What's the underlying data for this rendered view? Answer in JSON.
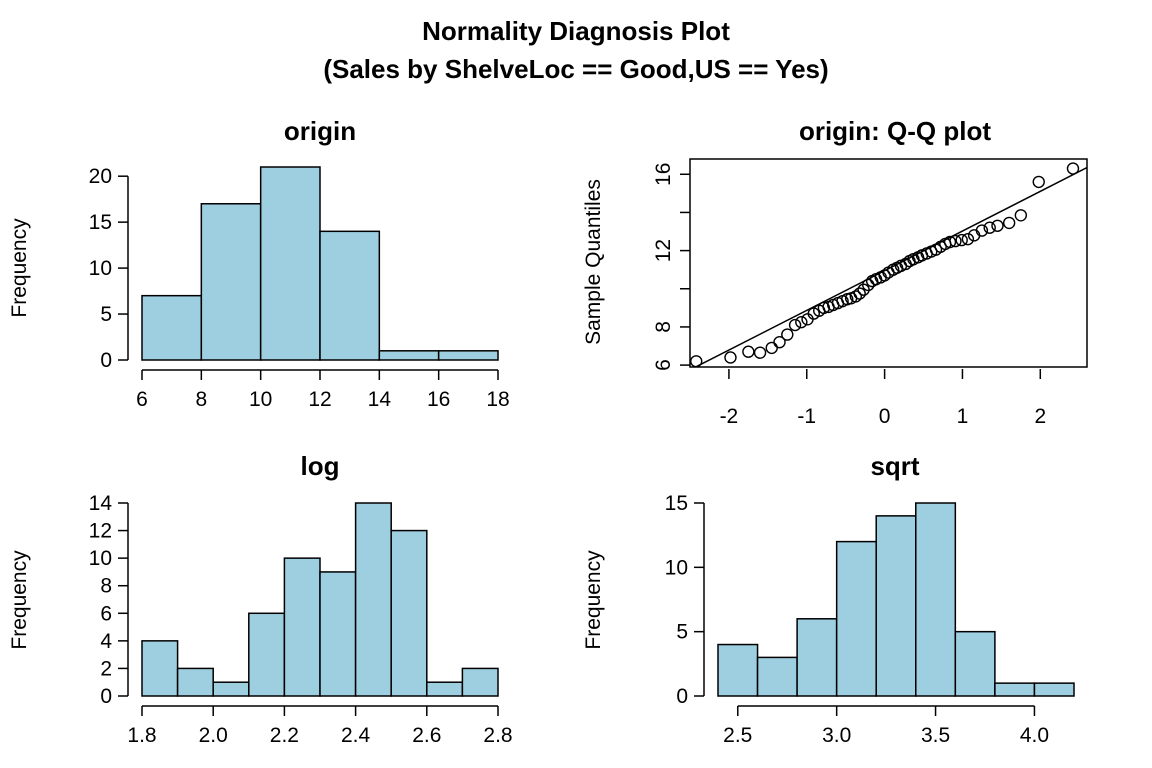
{
  "title": "Normality Diagnosis Plot",
  "subtitle": "(Sales by ShelveLoc == Good,US == Yes)",
  "colors": {
    "bar_fill": "#9ecfe0",
    "stroke": "#000000",
    "background": "#ffffff"
  },
  "chart_data": [
    {
      "type": "bar",
      "title": "origin",
      "xlabel": "",
      "ylabel": "Frequency",
      "bins": [
        [
          6,
          8
        ],
        [
          8,
          10
        ],
        [
          10,
          12
        ],
        [
          12,
          14
        ],
        [
          14,
          16
        ],
        [
          16,
          18
        ]
      ],
      "values": [
        7,
        17,
        21,
        14,
        1,
        1
      ],
      "xlim": [
        6,
        18
      ],
      "ylim": [
        0,
        21
      ],
      "xticks": [
        "6",
        "8",
        "10",
        "12",
        "14",
        "16",
        "18"
      ],
      "yticks": [
        "0",
        "5",
        "10",
        "15",
        "20"
      ]
    },
    {
      "type": "scatter",
      "title": "origin: Q-Q plot",
      "xlabel": "",
      "ylabel": "Sample Quantiles",
      "xlim": [
        -2.5,
        2.6
      ],
      "ylim": [
        5.9,
        16.8
      ],
      "xticks": [
        "-2",
        "-1",
        "0",
        "1",
        "2"
      ],
      "yticks": [
        "6",
        "8",
        "12",
        "16"
      ],
      "points": [
        [
          -2.42,
          6.2
        ],
        [
          -1.98,
          6.4
        ],
        [
          -1.75,
          6.7
        ],
        [
          -1.6,
          6.65
        ],
        [
          -1.45,
          6.9
        ],
        [
          -1.35,
          7.2
        ],
        [
          -1.25,
          7.6
        ],
        [
          -1.15,
          8.1
        ],
        [
          -1.07,
          8.25
        ],
        [
          -0.99,
          8.4
        ],
        [
          -0.91,
          8.7
        ],
        [
          -0.84,
          8.85
        ],
        [
          -0.78,
          9.0
        ],
        [
          -0.72,
          9.05
        ],
        [
          -0.66,
          9.15
        ],
        [
          -0.6,
          9.25
        ],
        [
          -0.54,
          9.35
        ],
        [
          -0.48,
          9.45
        ],
        [
          -0.43,
          9.5
        ],
        [
          -0.37,
          9.6
        ],
        [
          -0.32,
          9.75
        ],
        [
          -0.27,
          9.95
        ],
        [
          -0.21,
          10.2
        ],
        [
          -0.16,
          10.4
        ],
        [
          -0.11,
          10.5
        ],
        [
          -0.05,
          10.6
        ],
        [
          0.0,
          10.7
        ],
        [
          0.05,
          10.85
        ],
        [
          0.11,
          11.0
        ],
        [
          0.16,
          11.1
        ],
        [
          0.21,
          11.2
        ],
        [
          0.27,
          11.3
        ],
        [
          0.32,
          11.45
        ],
        [
          0.37,
          11.55
        ],
        [
          0.43,
          11.65
        ],
        [
          0.48,
          11.75
        ],
        [
          0.54,
          11.85
        ],
        [
          0.6,
          11.95
        ],
        [
          0.66,
          12.05
        ],
        [
          0.72,
          12.2
        ],
        [
          0.78,
          12.35
        ],
        [
          0.84,
          12.45
        ],
        [
          0.91,
          12.5
        ],
        [
          0.99,
          12.55
        ],
        [
          1.07,
          12.6
        ],
        [
          1.15,
          12.8
        ],
        [
          1.25,
          13.05
        ],
        [
          1.35,
          13.2
        ],
        [
          1.45,
          13.3
        ],
        [
          1.6,
          13.45
        ],
        [
          1.75,
          13.85
        ],
        [
          1.98,
          15.6
        ],
        [
          2.42,
          16.3
        ]
      ],
      "reference_line": [
        [
          -2.5,
          5.75
        ],
        [
          2.6,
          16.35
        ]
      ]
    },
    {
      "type": "bar",
      "title": "log",
      "xlabel": "",
      "ylabel": "Frequency",
      "bins": [
        [
          1.8,
          1.9
        ],
        [
          1.9,
          2.0
        ],
        [
          2.0,
          2.1
        ],
        [
          2.1,
          2.2
        ],
        [
          2.2,
          2.3
        ],
        [
          2.3,
          2.4
        ],
        [
          2.4,
          2.5
        ],
        [
          2.5,
          2.6
        ],
        [
          2.6,
          2.7
        ],
        [
          2.7,
          2.8
        ]
      ],
      "values": [
        4,
        2,
        1,
        6,
        10,
        9,
        14,
        12,
        1,
        2
      ],
      "xlim": [
        1.8,
        2.8
      ],
      "ylim": [
        0,
        14
      ],
      "xticks": [
        "1.8",
        "2.0",
        "2.2",
        "2.4",
        "2.6",
        "2.8"
      ],
      "yticks": [
        "0",
        "2",
        "4",
        "6",
        "8",
        "10",
        "12",
        "14"
      ]
    },
    {
      "type": "bar",
      "title": "sqrt",
      "xlabel": "",
      "ylabel": "Frequency",
      "bins": [
        [
          2.4,
          2.6
        ],
        [
          2.6,
          2.8
        ],
        [
          2.8,
          3.0
        ],
        [
          3.0,
          3.2
        ],
        [
          3.2,
          3.4
        ],
        [
          3.4,
          3.6
        ],
        [
          3.6,
          3.8
        ],
        [
          3.8,
          4.0
        ],
        [
          4.0,
          4.2
        ]
      ],
      "values": [
        4,
        3,
        6,
        12,
        14,
        15,
        5,
        1,
        1
      ],
      "xlim": [
        2.4,
        4.2
      ],
      "ylim": [
        0,
        15
      ],
      "xticks": [
        "2.5",
        "3.0",
        "3.5",
        "4.0"
      ],
      "yticks": [
        "0",
        "5",
        "10",
        "15"
      ]
    }
  ]
}
